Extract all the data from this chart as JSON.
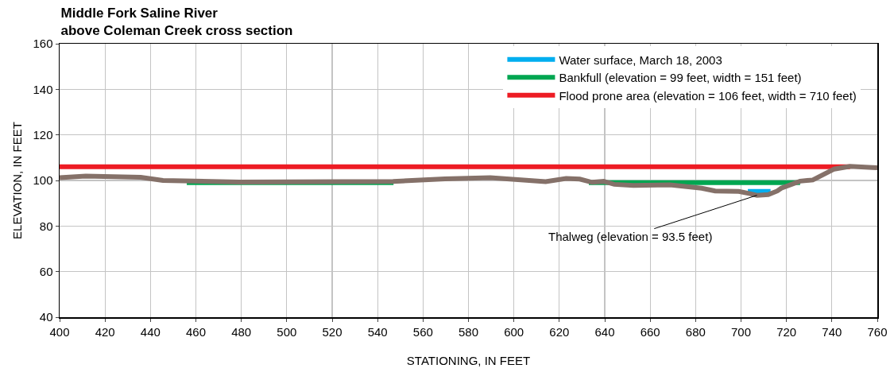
{
  "chart_data": {
    "type": "line",
    "title": "Middle Fork Saline River\nabove Coleman Creek cross section",
    "xlabel": "STATIONING, IN FEET",
    "ylabel": "ELEVATION, IN FEET",
    "xlim": [
      400,
      760
    ],
    "xticks": [
      400,
      420,
      440,
      460,
      480,
      500,
      520,
      540,
      560,
      580,
      600,
      620,
      640,
      660,
      680,
      700,
      720,
      740,
      760
    ],
    "ylim": [
      40,
      160
    ],
    "yticks": [
      40,
      60,
      80,
      100,
      120,
      140,
      160
    ],
    "grid": true,
    "legend": "top right",
    "marker": "none",
    "line_style": "solid",
    "series": [
      {
        "name": "Water surface, March 18, 2003",
        "color": "#00aeef",
        "x": [
          703,
          713
        ],
        "values": [
          95.2,
          95.2
        ]
      },
      {
        "name": "Bankfull (elevation = 99 feet, width = 151 feet)",
        "color": "#00a651",
        "x": [
          456,
          547,
          590,
          633,
          726
        ],
        "values": [
          99,
          99,
          null,
          99,
          99
        ]
      },
      {
        "name": "Flood prone area (elevation = 106 feet, width = 710 feet)",
        "color": "#ed1c24",
        "x": [
          400,
          748
        ],
        "values": [
          106,
          106
        ]
      },
      {
        "color": "#857169",
        "x": [
          400,
          411.5,
          435.7,
          445.5,
          479,
          546.8,
          569.7,
          589.6,
          614,
          623,
          629,
          634.4,
          639.6,
          644.2,
          652.6,
          668.7,
          682.7,
          688.6,
          699,
          703.6,
          707,
          712,
          716,
          717.7,
          726,
          731.6,
          741,
          748,
          757.9,
          760
        ],
        "values": [
          101.2,
          101.9,
          101.4,
          100,
          99.3,
          99.6,
          100.7,
          101.2,
          99.5,
          100.9,
          100.6,
          99.2,
          99.6,
          98.3,
          97.8,
          98.1,
          96.6,
          95.4,
          95.2,
          94.3,
          93.5,
          93.8,
          95.4,
          96.6,
          99.7,
          100.2,
          105,
          106.2,
          105.7,
          105.6
        ]
      }
    ],
    "annotations": [
      {
        "text": "Thalweg (elevation = 93.5 feet)",
        "x": 707,
        "y": 93.5
      }
    ]
  }
}
